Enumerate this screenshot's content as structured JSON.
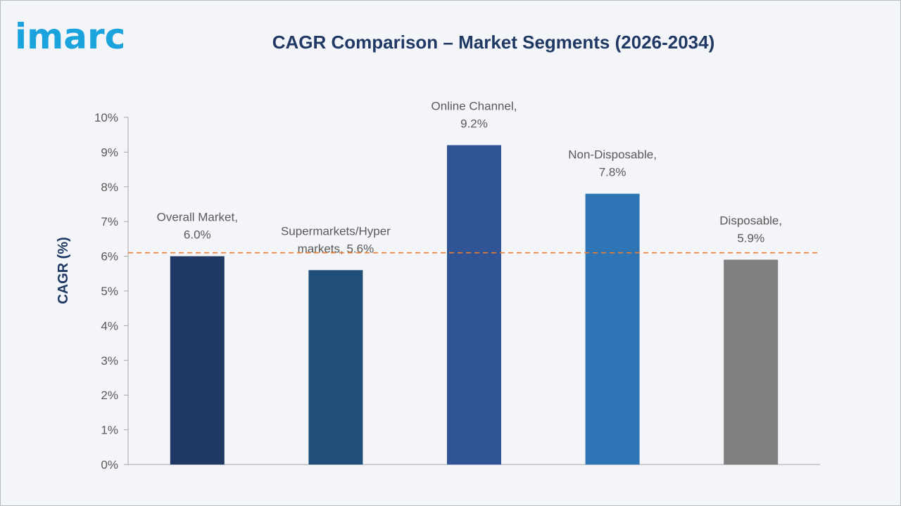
{
  "logo": {
    "text": "imarc"
  },
  "chart_data": {
    "type": "bar",
    "title": "CAGR Comparison – Market Segments (2026-2034)",
    "ylabel": "CAGR (%)",
    "xlabel": "",
    "ylim": [
      0,
      10
    ],
    "yticks": [
      "0%",
      "1%",
      "2%",
      "3%",
      "4%",
      "5%",
      "6%",
      "7%",
      "8%",
      "9%",
      "10%"
    ],
    "categories": [
      "Overall Market",
      "Supermarkets/Hyper markets",
      "Online Channel",
      "Non-Disposable",
      "Disposable"
    ],
    "values": [
      6.0,
      5.6,
      9.2,
      7.8,
      5.9
    ],
    "data_labels": [
      [
        "Overall Market,",
        "6.0%"
      ],
      [
        "Supermarkets/Hyper",
        "markets, 5.6%"
      ],
      [
        "Online Channel,",
        "9.2%"
      ],
      [
        "Non-Disposable,",
        "7.8%"
      ],
      [
        "Disposable,",
        "5.9%"
      ]
    ],
    "colors": [
      "#203864",
      "#1f4e79",
      "#2f5597",
      "#2e75b6",
      "#7f7f7f"
    ],
    "reference_line": {
      "value": 6.1,
      "color": "#ed7d31",
      "style": "dashed"
    },
    "grid": false,
    "legend": "none"
  }
}
